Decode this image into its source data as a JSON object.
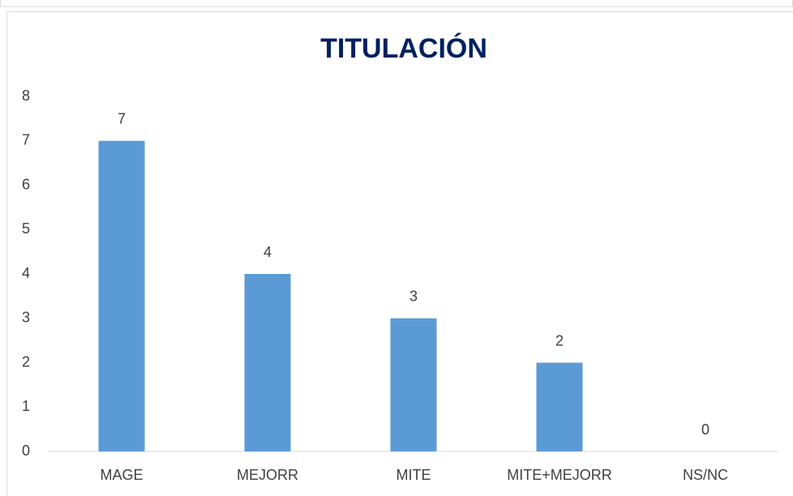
{
  "chart_data": {
    "type": "bar",
    "title": "TITULACIÓN",
    "categories": [
      "MAGE",
      "MEJORR",
      "MITE",
      "MITE+MEJORR",
      "NS/NC"
    ],
    "values": [
      7,
      4,
      3,
      2,
      0
    ],
    "color": "#5b9bd5",
    "ylim": [
      0,
      8
    ],
    "yticks": [
      0,
      1,
      2,
      3,
      4,
      5,
      6,
      7,
      8
    ],
    "grid": false
  }
}
